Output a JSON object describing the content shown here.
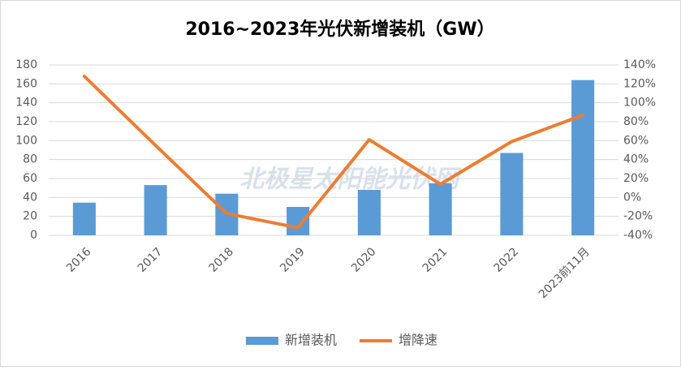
{
  "chart_data": {
    "type": "bar-line",
    "title": "2016~2023年光伏新增装机（GW）",
    "watermark": "北极星太阳能光伏网",
    "categories": [
      "2016",
      "2017",
      "2018",
      "2019",
      "2020",
      "2021",
      "2022",
      "2023前11月"
    ],
    "series": [
      {
        "name": "新增装机",
        "type": "bar",
        "color": "#5b9bd5",
        "values": [
          34.5,
          53,
          44,
          30,
          48,
          55,
          87,
          164
        ]
      },
      {
        "name": "增降速",
        "type": "line",
        "axis": "y2",
        "color": "#ed7d31",
        "values": [
          128,
          55,
          -17,
          -32,
          61,
          14,
          59,
          87
        ]
      }
    ],
    "ylim": [
      0,
      180
    ],
    "yticks": [
      0,
      20,
      40,
      60,
      80,
      100,
      120,
      140,
      160,
      180
    ],
    "y2lim": [
      -40,
      140
    ],
    "y2ticks": [
      {
        "value": -40,
        "label": "-40%"
      },
      {
        "value": -20,
        "label": "-20%"
      },
      {
        "value": 0,
        "label": "0%"
      },
      {
        "value": 20,
        "label": "20%"
      },
      {
        "value": 40,
        "label": "40%"
      },
      {
        "value": 60,
        "label": "60%"
      },
      {
        "value": 80,
        "label": "80%"
      },
      {
        "value": 100,
        "label": "100%"
      },
      {
        "value": 120,
        "label": "120%"
      },
      {
        "value": 140,
        "label": "140%"
      }
    ],
    "grid": true,
    "legend": "bottom"
  }
}
